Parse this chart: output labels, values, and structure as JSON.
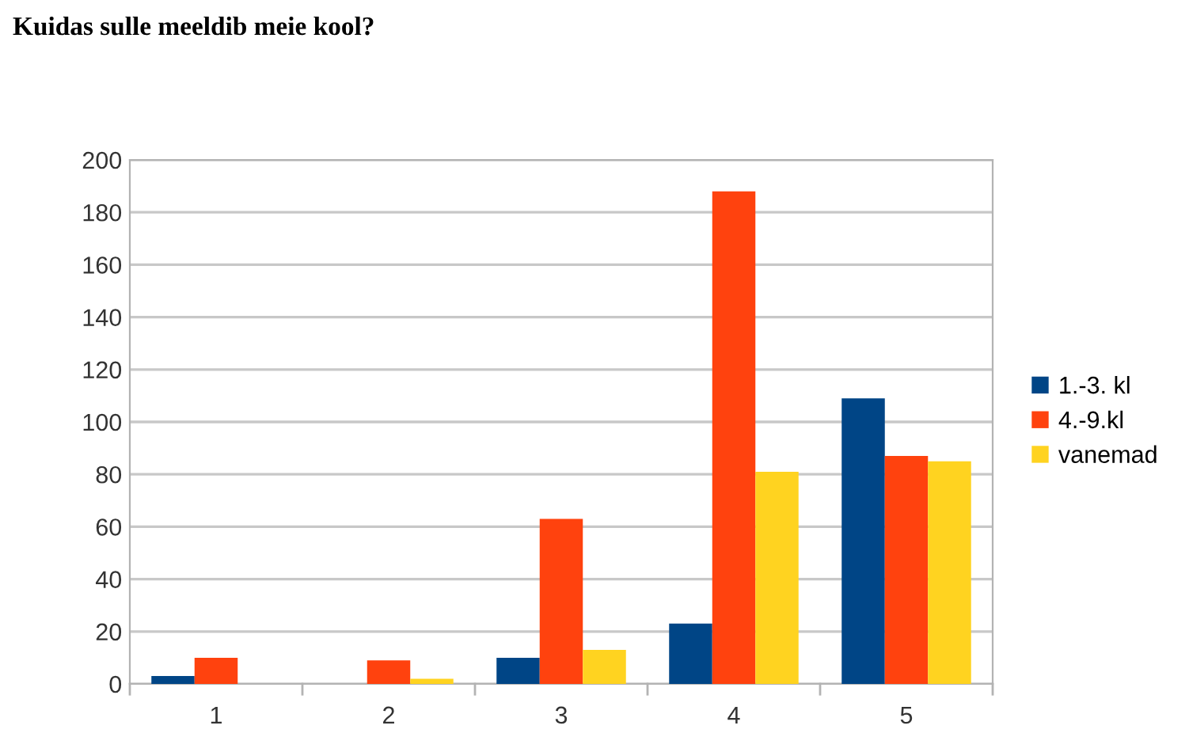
{
  "chart_data": {
    "type": "bar",
    "title": "Kuidas sulle meeldib meie kool?",
    "categories": [
      "1",
      "2",
      "3",
      "4",
      "5"
    ],
    "series": [
      {
        "name": "1.-3. kl",
        "color": "#004586",
        "values": [
          3,
          0,
          10,
          23,
          109
        ]
      },
      {
        "name": "4.-9.kl",
        "color": "#ff420e",
        "values": [
          10,
          9,
          63,
          188,
          87
        ]
      },
      {
        "name": "vanemad",
        "color": "#ffd320",
        "values": [
          0,
          2,
          13,
          81,
          85
        ]
      }
    ],
    "ylim": [
      0,
      200
    ],
    "yticks": [
      0,
      20,
      40,
      60,
      80,
      100,
      120,
      140,
      160,
      180,
      200
    ],
    "grid": "y",
    "legend": "right"
  }
}
